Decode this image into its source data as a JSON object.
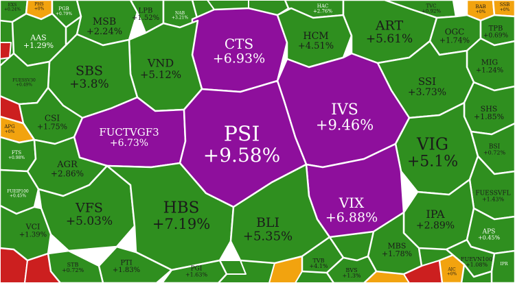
{
  "colors": {
    "up": "#2f8f1f",
    "ceiling": "#8e0f9c",
    "flat": "#f2a30f",
    "down": "#cc1f1f",
    "border": "#ffffff"
  },
  "tiles": [
    {
      "id": "exs",
      "ticker": "EXS",
      "change": "+0.24%",
      "status": "up"
    },
    {
      "id": "phs",
      "ticker": "PHS",
      "change": "+0%",
      "status": "flat"
    },
    {
      "id": "pgb",
      "ticker": "PGB",
      "change": "+0.79%",
      "status": "up"
    },
    {
      "id": "msb",
      "ticker": "MSB",
      "change": "+2.24%",
      "status": "up"
    },
    {
      "id": "lpb",
      "ticker": "LPB",
      "change": "+1.52%",
      "status": "up"
    },
    {
      "id": "nab",
      "ticker": "NAB",
      "change": "+3.21%",
      "status": "up"
    },
    {
      "id": "hac",
      "ticker": "HAC",
      "change": "+2.76%",
      "status": "up"
    },
    {
      "id": "tvc",
      "ticker": "TVC",
      "change": "+0.92%",
      "status": "up"
    },
    {
      "id": "bab",
      "ticker": "BAB",
      "change": "+0%",
      "status": "flat"
    },
    {
      "id": "ssb",
      "ticker": "SSB",
      "change": "+0%",
      "status": "flat"
    },
    {
      "id": "aas",
      "ticker": "AAS",
      "change": "+1.29%",
      "status": "up"
    },
    {
      "id": "cts",
      "ticker": "CTS",
      "change": "+6.93%",
      "status": "ceiling"
    },
    {
      "id": "hcm",
      "ticker": "HCM",
      "change": "+4.51%",
      "status": "up"
    },
    {
      "id": "art",
      "ticker": "ART",
      "change": "+5.61%",
      "status": "up"
    },
    {
      "id": "ogc",
      "ticker": "OGC",
      "change": "+1.74%",
      "status": "up"
    },
    {
      "id": "tpb",
      "ticker": "TPB",
      "change": "+0.69%",
      "status": "up"
    },
    {
      "id": "vnd",
      "ticker": "VND",
      "change": "+5.12%",
      "status": "up"
    },
    {
      "id": "sbs",
      "ticker": "SBS",
      "change": "+3.8%",
      "status": "up"
    },
    {
      "id": "mig",
      "ticker": "MIG",
      "change": "+1.24%",
      "status": "up"
    },
    {
      "id": "fuessv30",
      "ticker": "FUESSV30",
      "change": "+0.49%",
      "status": "up"
    },
    {
      "id": "ssi",
      "ticker": "SSI",
      "change": "+3.73%",
      "status": "up"
    },
    {
      "id": "ivs",
      "ticker": "IVS",
      "change": "+9.46%",
      "status": "ceiling"
    },
    {
      "id": "csi",
      "ticker": "CSI",
      "change": "+1.75%",
      "status": "up"
    },
    {
      "id": "apg",
      "ticker": "APG",
      "change": "+0%",
      "status": "flat"
    },
    {
      "id": "fuctvgf3",
      "ticker": "FUCTVGF3",
      "change": "+6.73%",
      "status": "ceiling"
    },
    {
      "id": "psi",
      "ticker": "PSI",
      "change": "+9.58%",
      "status": "ceiling"
    },
    {
      "id": "shs",
      "ticker": "SHS",
      "change": "+1.85%",
      "status": "up"
    },
    {
      "id": "fts",
      "ticker": "FTS",
      "change": "+0.98%",
      "status": "up"
    },
    {
      "id": "vig",
      "ticker": "VIG",
      "change": "+5.1%",
      "status": "up"
    },
    {
      "id": "bsi",
      "ticker": "BSI",
      "change": "+0.72%",
      "status": "up"
    },
    {
      "id": "agr",
      "ticker": "AGR",
      "change": "+2.86%",
      "status": "up"
    },
    {
      "id": "fuessvfl",
      "ticker": "FUESSVFL",
      "change": "+1.43%",
      "status": "up"
    },
    {
      "id": "vix",
      "ticker": "VIX",
      "change": "+6.88%",
      "status": "ceiling"
    },
    {
      "id": "fueip100",
      "ticker": "FUEIP100",
      "change": "+0.45%",
      "status": "up"
    },
    {
      "id": "vfs",
      "ticker": "VFS",
      "change": "+5.03%",
      "status": "up"
    },
    {
      "id": "hbs",
      "ticker": "HBS",
      "change": "+7.19%",
      "status": "up"
    },
    {
      "id": "bli",
      "ticker": "BLI",
      "change": "+5.35%",
      "status": "up"
    },
    {
      "id": "ipa",
      "ticker": "IPA",
      "change": "+2.89%",
      "status": "up"
    },
    {
      "id": "vci",
      "ticker": "VCI",
      "change": "+1.39%",
      "status": "up"
    },
    {
      "id": "aps",
      "ticker": "APS",
      "change": "+0.45%",
      "status": "up"
    },
    {
      "id": "mbs",
      "ticker": "MBS",
      "change": "+1.78%",
      "status": "up"
    },
    {
      "id": "pti",
      "ticker": "PTI",
      "change": "+1.83%",
      "status": "up"
    },
    {
      "id": "stb",
      "ticker": "STB",
      "change": "+0.72%",
      "status": "up"
    },
    {
      "id": "pgi",
      "ticker": "PGI",
      "change": "+1.63%",
      "status": "up"
    },
    {
      "id": "tvb",
      "ticker": "TVB",
      "change": "+4.1%",
      "status": "up"
    },
    {
      "id": "bvs",
      "ticker": "BVS",
      "change": "+1.3%",
      "status": "up"
    },
    {
      "id": "aic",
      "ticker": "AIC",
      "change": "+0%",
      "status": "flat"
    },
    {
      "id": "fuevn100",
      "ticker": "FUEVN100",
      "change": "+1.08%",
      "status": "up"
    },
    {
      "id": "ipr",
      "ticker": "IPR",
      "change": "",
      "status": "up"
    }
  ]
}
